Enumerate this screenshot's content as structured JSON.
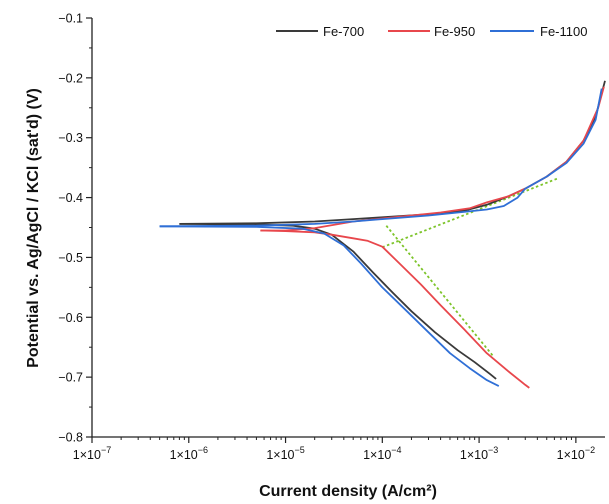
{
  "chart_data": {
    "type": "line",
    "xlabel": "Current density (A/cm²)",
    "ylabel": "Potential vs. Ag/AgCl / KCl (sat'd) (V)",
    "x_scale": "log",
    "xlim": [
      1e-07,
      0.02
    ],
    "ylim": [
      -0.8,
      -0.1
    ],
    "x_ticks": [
      1e-07,
      1e-06,
      1e-05,
      0.0001,
      0.001,
      0.01
    ],
    "x_tick_labels": [
      {
        "base": "1×10",
        "exp": "−7"
      },
      {
        "base": "1×10",
        "exp": "−6"
      },
      {
        "base": "1×10",
        "exp": "−5"
      },
      {
        "base": "1×10",
        "exp": "−4"
      },
      {
        "base": "1×10",
        "exp": "−3"
      },
      {
        "base": "1×10",
        "exp": "−2"
      }
    ],
    "y_ticks": [
      -0.8,
      -0.7,
      -0.6,
      -0.5,
      -0.4,
      -0.3,
      -0.2,
      -0.1
    ],
    "y_tick_labels": [
      "−0.8",
      "−0.7",
      "−0.6",
      "−0.5",
      "−0.4",
      "−0.3",
      "−0.2",
      "−0.1"
    ],
    "legend_position": "top-right",
    "grid": false,
    "series": [
      {
        "name": "Fe-700",
        "color": "#3a3a3a",
        "anodic": [
          [
            8e-07,
            -0.444
          ],
          [
            5e-06,
            -0.443
          ],
          [
            2e-05,
            -0.44
          ],
          [
            5e-05,
            -0.436
          ],
          [
            0.0001,
            -0.433
          ],
          [
            0.0003,
            -0.428
          ],
          [
            0.0007,
            -0.422
          ],
          [
            0.0012,
            -0.412
          ],
          [
            0.002,
            -0.398
          ],
          [
            0.003,
            -0.385
          ],
          [
            0.005,
            -0.365
          ],
          [
            0.008,
            -0.34
          ],
          [
            0.012,
            -0.305
          ],
          [
            0.016,
            -0.265
          ],
          [
            0.02,
            -0.205
          ]
        ],
        "cathodic": [
          [
            8e-07,
            -0.444
          ],
          [
            5e-06,
            -0.445
          ],
          [
            1.2e-05,
            -0.447
          ],
          [
            2e-05,
            -0.452
          ],
          [
            3e-05,
            -0.462
          ],
          [
            5e-05,
            -0.49
          ],
          [
            8e-05,
            -0.525
          ],
          [
            0.00013,
            -0.56
          ],
          [
            0.0002,
            -0.59
          ],
          [
            0.00035,
            -0.625
          ],
          [
            0.0006,
            -0.655
          ],
          [
            0.0009,
            -0.675
          ],
          [
            0.0013,
            -0.695
          ],
          [
            0.0015,
            -0.703
          ]
        ]
      },
      {
        "name": "Fe-950",
        "color": "#e8474c",
        "anodic": [
          [
            5.5e-06,
            -0.455
          ],
          [
            1e-05,
            -0.455
          ],
          [
            2e-05,
            -0.451
          ],
          [
            5e-05,
            -0.44
          ],
          [
            0.0001,
            -0.435
          ],
          [
            0.0002,
            -0.43
          ],
          [
            0.0004,
            -0.425
          ],
          [
            0.0008,
            -0.418
          ],
          [
            0.0012,
            -0.408
          ],
          [
            0.002,
            -0.398
          ],
          [
            0.003,
            -0.385
          ],
          [
            0.005,
            -0.365
          ],
          [
            0.008,
            -0.34
          ],
          [
            0.012,
            -0.305
          ],
          [
            0.017,
            -0.25
          ],
          [
            0.0195,
            -0.215
          ]
        ],
        "cathodic": [
          [
            5.5e-06,
            -0.455
          ],
          [
            1e-05,
            -0.456
          ],
          [
            2e-05,
            -0.458
          ],
          [
            3e-05,
            -0.462
          ],
          [
            5e-05,
            -0.468
          ],
          [
            7e-05,
            -0.472
          ],
          [
            0.0001,
            -0.482
          ],
          [
            0.00015,
            -0.51
          ],
          [
            0.00025,
            -0.545
          ],
          [
            0.0004,
            -0.58
          ],
          [
            0.0007,
            -0.62
          ],
          [
            0.0012,
            -0.66
          ],
          [
            0.002,
            -0.69
          ],
          [
            0.003,
            -0.713
          ],
          [
            0.0033,
            -0.718
          ]
        ]
      },
      {
        "name": "Fe-1100",
        "color": "#2f6fd6",
        "anodic": [
          [
            5e-07,
            -0.448
          ],
          [
            5e-06,
            -0.447
          ],
          [
            2e-05,
            -0.444
          ],
          [
            5e-05,
            -0.44
          ],
          [
            0.0001,
            -0.436
          ],
          [
            0.0003,
            -0.43
          ],
          [
            0.0007,
            -0.424
          ],
          [
            0.0012,
            -0.42
          ],
          [
            0.0018,
            -0.414
          ],
          [
            0.0025,
            -0.4
          ],
          [
            0.003,
            -0.385
          ],
          [
            0.005,
            -0.365
          ],
          [
            0.008,
            -0.342
          ],
          [
            0.012,
            -0.31
          ],
          [
            0.016,
            -0.27
          ],
          [
            0.0185,
            -0.218
          ]
        ],
        "cathodic": [
          [
            5e-07,
            -0.448
          ],
          [
            5e-06,
            -0.449
          ],
          [
            1.5e-05,
            -0.452
          ],
          [
            2.5e-05,
            -0.46
          ],
          [
            4e-05,
            -0.48
          ],
          [
            6e-05,
            -0.51
          ],
          [
            0.0001,
            -0.55
          ],
          [
            0.00018,
            -0.59
          ],
          [
            0.0003,
            -0.625
          ],
          [
            0.0005,
            -0.66
          ],
          [
            0.0008,
            -0.685
          ],
          [
            0.0012,
            -0.705
          ],
          [
            0.0016,
            -0.715
          ]
        ]
      }
    ],
    "tafel_lines": {
      "color": "#7dc42a",
      "lines": [
        [
          [
            0.0001,
            -0.483
          ],
          [
            0.0065,
            -0.368
          ]
        ],
        [
          [
            0.00011,
            -0.447
          ],
          [
            0.0014,
            -0.665
          ]
        ]
      ]
    }
  }
}
